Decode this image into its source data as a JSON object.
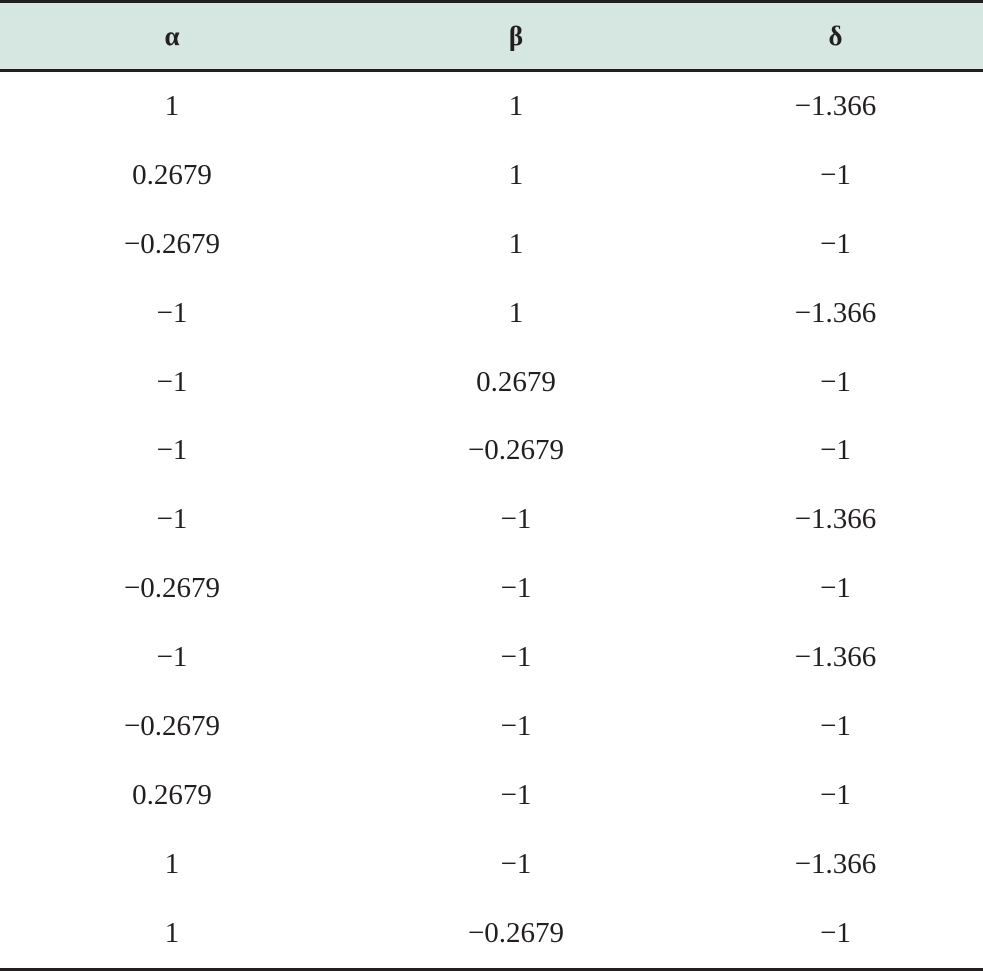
{
  "table": {
    "headers": [
      "α",
      "β",
      "δ"
    ],
    "rows": [
      [
        "1",
        "1",
        "−1.366"
      ],
      [
        "0.2679",
        "1",
        "−1"
      ],
      [
        "−0.2679",
        "1",
        "−1"
      ],
      [
        "−1",
        "1",
        "−1.366"
      ],
      [
        "−1",
        "0.2679",
        "−1"
      ],
      [
        "−1",
        "−0.2679",
        "−1"
      ],
      [
        "−1",
        "−1",
        "−1.366"
      ],
      [
        "−0.2679",
        "−1",
        "−1"
      ],
      [
        "−1",
        "−1",
        "−1.366"
      ],
      [
        "−0.2679",
        "−1",
        "−1"
      ],
      [
        "0.2679",
        "−1",
        "−1"
      ],
      [
        "1",
        "−1",
        "−1.366"
      ],
      [
        "1",
        "−0.2679",
        "−1"
      ]
    ]
  }
}
